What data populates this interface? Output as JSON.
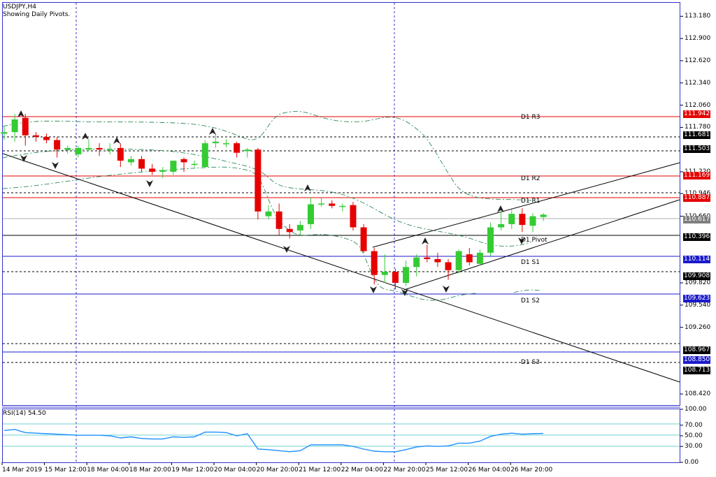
{
  "header": {
    "symbol_tf": "USDJPY,H4",
    "subtitle": "Showing Daily Pivots."
  },
  "rsi_label": "RSI(14) 54.50",
  "price_axis": [
    "113.180",
    "112.900",
    "112.620",
    "112.340",
    "112.060",
    "111.780",
    "111.220",
    "110.946",
    "110.660",
    "109.820",
    "109.540",
    "109.260",
    "108.420"
  ],
  "price_axis_values": [
    113.18,
    112.9,
    112.62,
    112.34,
    112.06,
    111.78,
    111.22,
    110.946,
    110.66,
    109.82,
    109.54,
    109.26,
    108.42
  ],
  "rsi_axis": [
    "100.00",
    "70.00",
    "50.00",
    "30.00",
    "0.00"
  ],
  "rsi_axis_values": [
    100,
    70,
    50,
    30,
    0
  ],
  "time_axis": [
    "14 Mar 2019",
    "15 Mar 12:00",
    "18 Mar 04:00",
    "18 Mar 20:00",
    "19 Mar 12:00",
    "20 Mar 04:00",
    "20 Mar 20:00",
    "21 Mar 12:00",
    "22 Mar 04:00",
    "22 Mar 20:00",
    "25 Mar 12:00",
    "26 Mar 04:00",
    "26 Mar 20:00"
  ],
  "pivot_labels": [
    {
      "text": "D1 R3",
      "price": 111.942
    },
    {
      "text": "D1 R2",
      "price": 111.169
    },
    {
      "text": "D1 R1",
      "price": 110.887
    },
    {
      "text": "D1 Pivot",
      "price": 110.396
    },
    {
      "text": "D1 S1",
      "price": 110.114
    },
    {
      "text": "D1 S2",
      "price": 109.623
    },
    {
      "text": "D1 S3",
      "price": 108.85
    }
  ],
  "price_badges": [
    {
      "text": "111.942",
      "price": 111.942,
      "color": "#e60000"
    },
    {
      "text": "111.681",
      "price": 111.681,
      "color": "#000000"
    },
    {
      "text": "111.503",
      "price": 111.503,
      "color": "#000000"
    },
    {
      "text": "111.169",
      "price": 111.169,
      "color": "#e60000"
    },
    {
      "text": "110.887",
      "price": 110.887,
      "color": "#e60000"
    },
    {
      "text": "110.617",
      "price": 110.617,
      "color": "#7f7f7f"
    },
    {
      "text": "110.396",
      "price": 110.396,
      "color": "#000000"
    },
    {
      "text": "110.114",
      "price": 110.114,
      "color": "#1a1acc"
    },
    {
      "text": "109.908",
      "price": 109.908,
      "color": "#000000"
    },
    {
      "text": "109.623",
      "price": 109.623,
      "color": "#1a1acc"
    },
    {
      "text": "108.967",
      "price": 108.967,
      "color": "#000000"
    },
    {
      "text": "108.850",
      "price": 108.85,
      "color": "#1a1acc"
    },
    {
      "text": "108.713",
      "price": 108.713,
      "color": "#000000"
    }
  ],
  "colors": {
    "bull": "#33cc33",
    "bear": "#e60000",
    "resistance": "#e60000",
    "support": "#1a1acc",
    "pivot": "#000000",
    "rsi": "#1e90ff",
    "frame": "#3333cc",
    "bands": "#2e8b57"
  },
  "chart_data": {
    "type": "candlestick",
    "ylim": [
      108.28,
      113.35
    ],
    "rsi_ylim": [
      0,
      100
    ],
    "candles": [
      [
        111.7,
        111.8,
        111.62,
        111.72
      ],
      [
        111.72,
        111.95,
        111.6,
        111.88
      ],
      [
        111.9,
        111.95,
        111.55,
        111.68
      ],
      [
        111.68,
        111.72,
        111.6,
        111.66
      ],
      [
        111.66,
        111.7,
        111.58,
        111.62
      ],
      [
        111.62,
        111.66,
        111.4,
        111.5
      ],
      [
        111.5,
        111.55,
        111.45,
        111.52
      ],
      [
        111.44,
        111.55,
        111.4,
        111.52
      ],
      [
        111.5,
        111.62,
        111.48,
        111.52
      ],
      [
        111.52,
        111.58,
        111.42,
        111.5
      ],
      [
        111.5,
        111.58,
        111.44,
        111.5
      ],
      [
        111.52,
        111.58,
        111.28,
        111.36
      ],
      [
        111.34,
        111.42,
        111.3,
        111.38
      ],
      [
        111.38,
        111.42,
        111.22,
        111.26
      ],
      [
        111.26,
        111.32,
        111.18,
        111.22
      ],
      [
        111.22,
        111.28,
        111.14,
        111.24
      ],
      [
        111.22,
        111.36,
        111.18,
        111.36
      ],
      [
        111.38,
        111.4,
        111.22,
        111.34
      ],
      [
        111.32,
        111.36,
        111.28,
        111.32
      ],
      [
        111.28,
        111.62,
        111.28,
        111.58
      ],
      [
        111.58,
        111.7,
        111.52,
        111.6
      ],
      [
        111.58,
        111.63,
        111.53,
        111.58
      ],
      [
        111.58,
        111.6,
        111.4,
        111.46
      ],
      [
        111.48,
        111.52,
        111.4,
        111.5
      ],
      [
        111.5,
        111.52,
        110.62,
        110.72
      ],
      [
        110.66,
        110.8,
        110.62,
        110.72
      ],
      [
        110.72,
        110.82,
        110.42,
        110.5
      ],
      [
        110.5,
        110.56,
        110.38,
        110.46
      ],
      [
        110.48,
        110.6,
        110.42,
        110.55
      ],
      [
        110.56,
        110.9,
        110.5,
        110.81
      ],
      [
        110.81,
        110.9,
        110.78,
        110.82
      ],
      [
        110.82,
        110.86,
        110.76,
        110.79
      ],
      [
        110.78,
        110.82,
        110.72,
        110.79
      ],
      [
        110.8,
        110.84,
        110.48,
        110.52
      ],
      [
        110.52,
        110.56,
        110.2,
        110.22
      ],
      [
        110.22,
        110.26,
        109.8,
        109.92
      ],
      [
        109.92,
        110.18,
        109.82,
        109.96
      ],
      [
        109.96,
        110.0,
        109.74,
        109.82
      ],
      [
        109.82,
        110.1,
        109.78,
        110.02
      ],
      [
        110.02,
        110.18,
        109.9,
        110.14
      ],
      [
        110.14,
        110.3,
        110.08,
        110.12
      ],
      [
        110.12,
        110.2,
        110.02,
        110.08
      ],
      [
        110.08,
        110.12,
        109.86,
        109.98
      ],
      [
        109.98,
        110.24,
        109.94,
        110.22
      ],
      [
        110.18,
        110.26,
        110.04,
        110.08
      ],
      [
        110.06,
        110.24,
        110.04,
        110.2
      ],
      [
        110.2,
        110.58,
        110.16,
        110.52
      ],
      [
        110.52,
        110.72,
        110.48,
        110.56
      ],
      [
        110.56,
        110.74,
        110.5,
        110.69
      ],
      [
        110.69,
        110.76,
        110.46,
        110.55
      ],
      [
        110.54,
        110.7,
        110.46,
        110.66
      ],
      [
        110.65,
        110.7,
        110.6,
        110.68
      ]
    ],
    "rsi_values": [
      60,
      62,
      56,
      55,
      54,
      53,
      52,
      51,
      51,
      51,
      50,
      46,
      48,
      45,
      44,
      44,
      48,
      47,
      48,
      57,
      57,
      56,
      50,
      54,
      25,
      24,
      22,
      20,
      22,
      33,
      33,
      33,
      33,
      30,
      25,
      21,
      20,
      20,
      24,
      29,
      31,
      30,
      31,
      36,
      36,
      40,
      49,
      53,
      55,
      53,
      54,
      54.5
    ]
  }
}
